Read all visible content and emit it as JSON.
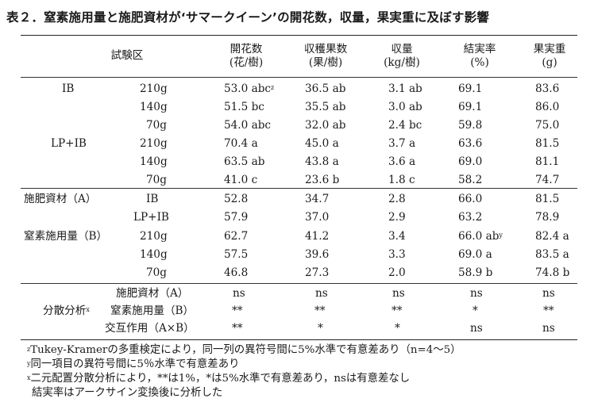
{
  "title": "表２．窒素施用量と施肥資材が‘サマークイーン’の開花数，収量，果実重に及ぼす影響",
  "headers": {
    "group": "試験区",
    "col1_l1": "開花数",
    "col1_l2": "(花/樹)",
    "col2_l1": "収穫果数",
    "col2_l2": "(果/樹)",
    "col3_l1": "収量",
    "col3_l2": "(kg/樹)",
    "col4_l1": "結実率",
    "col4_l2": "(%)",
    "col5_l1": "果実重",
    "col5_l2": "(g)"
  },
  "section1": {
    "rows": [
      {
        "material": "IB",
        "rate": "210g",
        "c1": "53.0 abc",
        "c1_sup": "z",
        "c2": "36.5 ab",
        "c3": "3.1 ab",
        "c4": "69.1",
        "c5": "83.6"
      },
      {
        "material": "",
        "rate": "140g",
        "c1": "51.5 bc",
        "c2": "35.5 ab",
        "c3": "3.0 ab",
        "c4": "69.1",
        "c5": "86.0"
      },
      {
        "material": "",
        "rate": "70g",
        "c1": "54.0 abc",
        "c2": "32.0 ab",
        "c3": "2.4 bc",
        "c4": "59.8",
        "c5": "75.0"
      },
      {
        "material": "LP+IB",
        "rate": "210g",
        "c1": "70.4 a",
        "c2": "45.0 a",
        "c3": "3.7 a",
        "c4": "63.6",
        "c5": "81.5"
      },
      {
        "material": "",
        "rate": "140g",
        "c1": "63.5 ab",
        "c2": "43.8 a",
        "c3": "3.6 a",
        "c4": "69.0",
        "c5": "81.1"
      },
      {
        "material": "",
        "rate": "70g",
        "c1": "41.0 c",
        "c2": "23.6 b",
        "c3": "1.8 c",
        "c4": "58.2",
        "c5": "74.7"
      }
    ]
  },
  "section2": {
    "factor_a": "施肥資材（A）",
    "factor_b": "窒素施用量（B）",
    "rows": [
      {
        "level": "IB",
        "c1": "52.8",
        "c2": "34.7",
        "c3": "2.8",
        "c4": "66.0",
        "c5": "81.5"
      },
      {
        "level": "LP+IB",
        "c1": "57.9",
        "c2": "37.0",
        "c3": "2.9",
        "c4": "63.2",
        "c5": "78.9"
      },
      {
        "level": "210g",
        "c1": "62.7",
        "c2": "41.2",
        "c3": "3.4",
        "c4": "66.0 ab",
        "c4_sup": "y",
        "c5": "82.4 a"
      },
      {
        "level": "140g",
        "c1": "57.5",
        "c2": "39.6",
        "c3": "3.3",
        "c4": "69.0 a",
        "c5": "83.5 a"
      },
      {
        "level": "70g",
        "c1": "46.8",
        "c2": "27.3",
        "c3": "2.0",
        "c4": "58.9 b",
        "c5": "74.8 b"
      }
    ]
  },
  "section3": {
    "label": "分散分析",
    "label_sup": "x",
    "rows": [
      {
        "source": "施肥資材（A）",
        "c1": "ns",
        "c2": "ns",
        "c3": "ns",
        "c4": "ns",
        "c5": "ns"
      },
      {
        "source": "窒素施用量（B）",
        "c1": "**",
        "c2": "**",
        "c3": "**",
        "c4": "*",
        "c5": "**"
      },
      {
        "source": "交互作用（A×B）",
        "c1": "**",
        "c2": "*",
        "c3": "*",
        "c4": "ns",
        "c5": "ns"
      }
    ]
  },
  "footnotes": {
    "n1_sup": "z",
    "n1": "Tukey-Kramerの多重検定により，同一列の異符号間に5%水準で有意差あり（n=4〜5）",
    "n2_sup": "y",
    "n2": "同一項目の異符号間に5％水準で有意差あり",
    "n3_sup": "x",
    "n3": "二元配置分散分析により，**は1%，*は5%水準で有意差あり，nsは有意差なし",
    "n4": "結実率はアークサイン変換後に分析した"
  }
}
